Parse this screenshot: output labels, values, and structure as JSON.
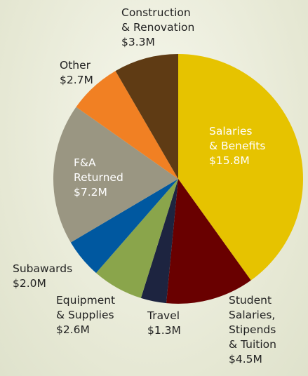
{
  "chart_data": {
    "type": "pie",
    "categories": [
      "Salaries\n& Benefits",
      "Student\nSalaries,\nStipends\n& Tuition",
      "Travel",
      "Equipment\n& Supplies",
      "Subawards",
      "F&A\nReturned",
      "Other",
      "Construction\n& Renovation"
    ],
    "values": [
      15.8,
      4.5,
      1.3,
      2.6,
      2.0,
      7.2,
      2.7,
      3.3
    ],
    "value_labels": [
      "$15.8M",
      "$4.5M",
      "$1.3M",
      "$2.6M",
      "$2.0M",
      "$7.2M",
      "$2.7M",
      "$3.3M"
    ],
    "colors": [
      "#e6c300",
      "#690000",
      "#1d2440",
      "#8aa54b",
      "#0058a0",
      "#9a9682",
      "#f18023",
      "#5f3b14"
    ]
  }
}
